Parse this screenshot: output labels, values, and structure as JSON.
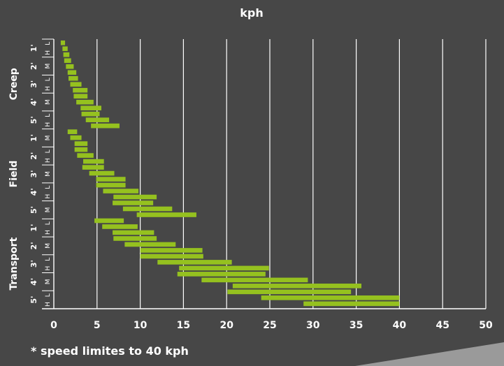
{
  "footnote": "* speed limites to 40 kph",
  "colors": {
    "background": "#474747",
    "bar": "#95c11f",
    "grid": "#ffffff",
    "text": "#ffffff",
    "corner": "#9a9a9a"
  },
  "chart_data": {
    "type": "bar",
    "orientation": "horizontal",
    "title": "kph",
    "xlim": [
      0,
      50
    ],
    "xticks": [
      0,
      5,
      10,
      15,
      20,
      25,
      30,
      35,
      40,
      45,
      50
    ],
    "grid": "vertical",
    "groups": [
      {
        "label": "Creep",
        "subgroups": [
          {
            "label": "1'",
            "markers": [
              "L",
              "H"
            ]
          },
          {
            "label": "2'",
            "markers": [
              "M"
            ]
          },
          {
            "label": "3'",
            "markers": [
              "L",
              "H"
            ]
          },
          {
            "label": "4'",
            "markers": [
              "M"
            ]
          },
          {
            "label": "5'",
            "markers": [
              "L",
              "H"
            ]
          }
        ]
      },
      {
        "label": "Field",
        "subgroups": [
          {
            "label": "1'",
            "markers": [
              "M"
            ]
          },
          {
            "label": "2'",
            "markers": [
              "L",
              "H"
            ]
          },
          {
            "label": "3'",
            "markers": [
              "M"
            ]
          },
          {
            "label": "4'",
            "markers": [
              "L",
              "H"
            ]
          },
          {
            "label": "5'",
            "markers": [
              "M"
            ]
          }
        ]
      },
      {
        "label": "Transport",
        "subgroups": [
          {
            "label": "1'",
            "markers": [
              "L",
              "H"
            ]
          },
          {
            "label": "2'",
            "markers": [
              "M"
            ]
          },
          {
            "label": "3'",
            "markers": [
              "L",
              "H"
            ]
          },
          {
            "label": "4'",
            "markers": [
              "M"
            ]
          },
          {
            "label": "5'",
            "markers": [
              "L",
              "H"
            ]
          }
        ]
      }
    ],
    "series": [
      {
        "name": "Creep",
        "ranges": [
          [
            0.8,
            1.3
          ],
          [
            1.0,
            1.6
          ],
          [
            1.1,
            1.8
          ],
          [
            1.2,
            2.0
          ],
          [
            1.4,
            2.3
          ],
          [
            1.6,
            2.6
          ],
          [
            1.7,
            2.8
          ],
          [
            1.9,
            3.2
          ],
          [
            2.2,
            3.9
          ],
          [
            2.3,
            3.9
          ],
          [
            2.6,
            4.6
          ],
          [
            3.1,
            5.5
          ],
          [
            3.2,
            5.3
          ],
          [
            3.7,
            6.4
          ],
          [
            4.3,
            7.6
          ]
        ]
      },
      {
        "name": "Field",
        "ranges": [
          [
            1.6,
            2.7
          ],
          [
            1.9,
            3.2
          ],
          [
            2.4,
            3.9
          ],
          [
            2.4,
            3.9
          ],
          [
            2.7,
            4.6
          ],
          [
            3.4,
            5.8
          ],
          [
            3.3,
            5.8
          ],
          [
            4.1,
            7.0
          ],
          [
            4.9,
            8.3
          ],
          [
            4.9,
            8.3
          ],
          [
            5.7,
            9.8
          ],
          [
            6.9,
            11.9
          ],
          [
            6.8,
            11.5
          ],
          [
            8.0,
            13.7
          ],
          [
            9.6,
            16.5
          ]
        ]
      },
      {
        "name": "Transport",
        "ranges": [
          [
            4.7,
            8.1
          ],
          [
            5.6,
            9.7
          ],
          [
            6.8,
            11.6
          ],
          [
            6.9,
            11.9
          ],
          [
            8.2,
            14.1
          ],
          [
            10.0,
            17.2
          ],
          [
            10.0,
            17.3
          ],
          [
            12.0,
            20.6
          ],
          [
            14.5,
            24.9
          ],
          [
            14.3,
            24.5
          ],
          [
            17.1,
            29.4
          ],
          [
            20.7,
            35.6
          ],
          [
            20.1,
            34.4
          ],
          [
            24.0,
            40.0
          ],
          [
            28.9,
            40.0
          ]
        ]
      }
    ]
  }
}
